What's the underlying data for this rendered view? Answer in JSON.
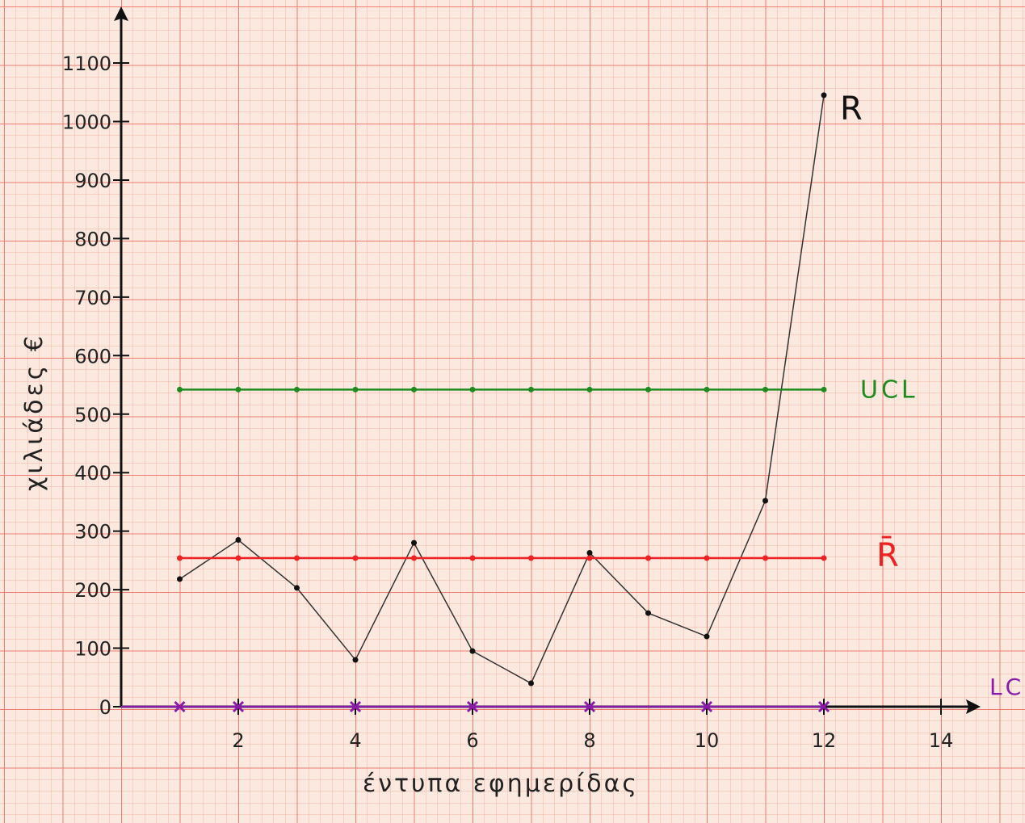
{
  "chart_data": {
    "type": "line",
    "xlabel": "έντυπα εφημερίδας",
    "ylabel": "χιλιάδες €",
    "xlim": [
      0,
      14
    ],
    "ylim": [
      0,
      1100
    ],
    "x_ticks": [
      {
        "value": 2,
        "label": "2"
      },
      {
        "value": 4,
        "label": "4"
      },
      {
        "value": 6,
        "label": "6"
      },
      {
        "value": 8,
        "label": "8"
      },
      {
        "value": 10,
        "label": "10"
      },
      {
        "value": 12,
        "label": "12"
      },
      {
        "value": 14,
        "label": "14"
      }
    ],
    "y_ticks": [
      {
        "value": 0,
        "label": "0"
      },
      {
        "value": 100,
        "label": "100"
      },
      {
        "value": 200,
        "label": "200"
      },
      {
        "value": 300,
        "label": "300"
      },
      {
        "value": 400,
        "label": "400"
      },
      {
        "value": 500,
        "label": "500"
      },
      {
        "value": 600,
        "label": "600"
      },
      {
        "value": 700,
        "label": "700"
      },
      {
        "value": 800,
        "label": "800"
      },
      {
        "value": 900,
        "label": "900"
      },
      {
        "value": 1000,
        "label": "1000"
      },
      {
        "value": 1100,
        "label": "1100"
      }
    ],
    "grid": true,
    "series": [
      {
        "name": "R",
        "color": "#333333",
        "x": [
          1,
          2,
          3,
          4,
          5,
          6,
          7,
          8,
          9,
          10,
          11,
          12
        ],
        "values": [
          218,
          285,
          203,
          80,
          280,
          95,
          40,
          263,
          160,
          120,
          352,
          1045
        ]
      },
      {
        "name": "UCL",
        "color": "#1f8a1f",
        "x": [
          1,
          2,
          3,
          4,
          5,
          6,
          7,
          8,
          9,
          10,
          11,
          12
        ],
        "values": [
          542,
          542,
          542,
          542,
          542,
          542,
          542,
          542,
          542,
          542,
          542,
          542
        ]
      },
      {
        "name": "R̄",
        "color": "#ee2222",
        "x": [
          1,
          2,
          3,
          4,
          5,
          6,
          7,
          8,
          9,
          10,
          11,
          12
        ],
        "values": [
          254,
          254,
          254,
          254,
          254,
          254,
          254,
          254,
          254,
          254,
          254,
          254
        ]
      },
      {
        "name": "LCL",
        "color": "#8a1aa8",
        "x": [
          1,
          2,
          4,
          6,
          8,
          10,
          12
        ],
        "values": [
          0,
          0,
          0,
          0,
          0,
          0,
          0
        ]
      }
    ],
    "colors": {
      "paper": "#fbe9df",
      "grid_minor": "#f4b3a6",
      "grid_major": "#ee7d70",
      "axis": "#111111"
    }
  }
}
